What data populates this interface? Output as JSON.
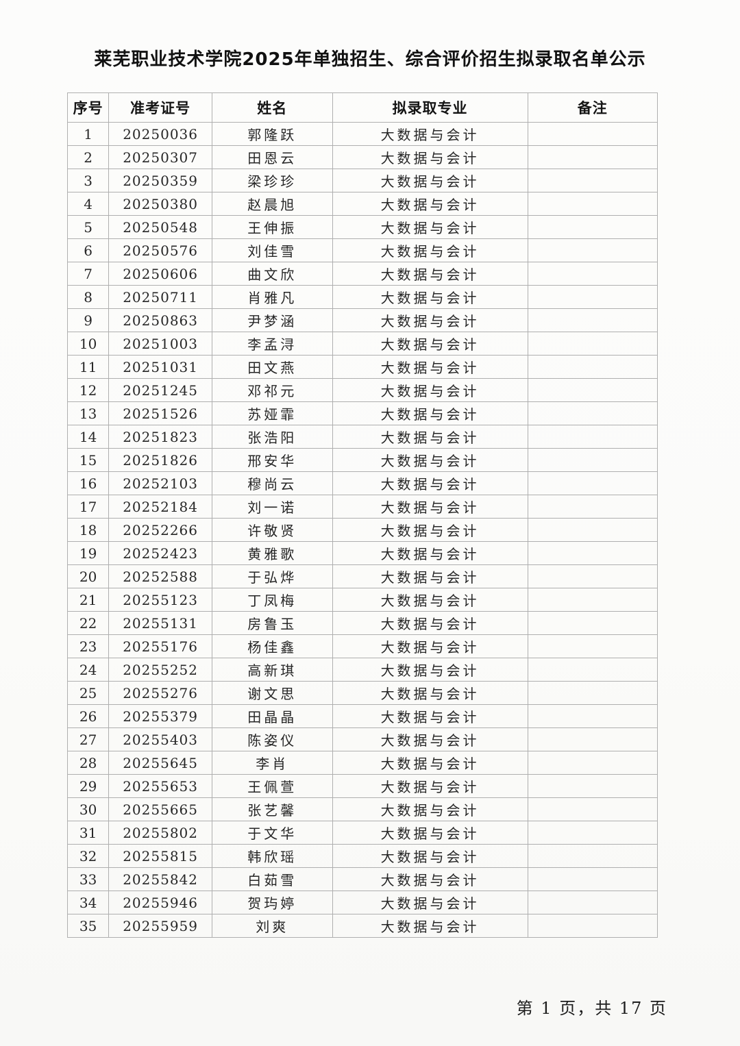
{
  "page": {
    "title": "莱芜职业技术学院2025年单独招生、综合评价招生拟录取名单公示",
    "footer": "第 1 页，共 17 页"
  },
  "table": {
    "headers": [
      "序号",
      "准考证号",
      "姓名",
      "拟录取专业",
      "备注"
    ],
    "rows": [
      {
        "no": "1",
        "exam_no": "20250036",
        "name": "郭隆跃",
        "major": "大数据与会计",
        "remark": ""
      },
      {
        "no": "2",
        "exam_no": "20250307",
        "name": "田恩云",
        "major": "大数据与会计",
        "remark": ""
      },
      {
        "no": "3",
        "exam_no": "20250359",
        "name": "梁珍珍",
        "major": "大数据与会计",
        "remark": ""
      },
      {
        "no": "4",
        "exam_no": "20250380",
        "name": "赵晨旭",
        "major": "大数据与会计",
        "remark": ""
      },
      {
        "no": "5",
        "exam_no": "20250548",
        "name": "王伸振",
        "major": "大数据与会计",
        "remark": ""
      },
      {
        "no": "6",
        "exam_no": "20250576",
        "name": "刘佳雪",
        "major": "大数据与会计",
        "remark": ""
      },
      {
        "no": "7",
        "exam_no": "20250606",
        "name": "曲文欣",
        "major": "大数据与会计",
        "remark": ""
      },
      {
        "no": "8",
        "exam_no": "20250711",
        "name": "肖雅凡",
        "major": "大数据与会计",
        "remark": ""
      },
      {
        "no": "9",
        "exam_no": "20250863",
        "name": "尹梦涵",
        "major": "大数据与会计",
        "remark": ""
      },
      {
        "no": "10",
        "exam_no": "20251003",
        "name": "李孟浔",
        "major": "大数据与会计",
        "remark": ""
      },
      {
        "no": "11",
        "exam_no": "20251031",
        "name": "田文燕",
        "major": "大数据与会计",
        "remark": ""
      },
      {
        "no": "12",
        "exam_no": "20251245",
        "name": "邓祁元",
        "major": "大数据与会计",
        "remark": ""
      },
      {
        "no": "13",
        "exam_no": "20251526",
        "name": "苏娅霏",
        "major": "大数据与会计",
        "remark": ""
      },
      {
        "no": "14",
        "exam_no": "20251823",
        "name": "张浩阳",
        "major": "大数据与会计",
        "remark": ""
      },
      {
        "no": "15",
        "exam_no": "20251826",
        "name": "邢安华",
        "major": "大数据与会计",
        "remark": ""
      },
      {
        "no": "16",
        "exam_no": "20252103",
        "name": "穆尚云",
        "major": "大数据与会计",
        "remark": ""
      },
      {
        "no": "17",
        "exam_no": "20252184",
        "name": "刘一诺",
        "major": "大数据与会计",
        "remark": ""
      },
      {
        "no": "18",
        "exam_no": "20252266",
        "name": "许敬贤",
        "major": "大数据与会计",
        "remark": ""
      },
      {
        "no": "19",
        "exam_no": "20252423",
        "name": "黄雅歌",
        "major": "大数据与会计",
        "remark": ""
      },
      {
        "no": "20",
        "exam_no": "20252588",
        "name": "于弘烨",
        "major": "大数据与会计",
        "remark": ""
      },
      {
        "no": "21",
        "exam_no": "20255123",
        "name": "丁凤梅",
        "major": "大数据与会计",
        "remark": ""
      },
      {
        "no": "22",
        "exam_no": "20255131",
        "name": "房鲁玉",
        "major": "大数据与会计",
        "remark": ""
      },
      {
        "no": "23",
        "exam_no": "20255176",
        "name": "杨佳鑫",
        "major": "大数据与会计",
        "remark": ""
      },
      {
        "no": "24",
        "exam_no": "20255252",
        "name": "高新琪",
        "major": "大数据与会计",
        "remark": ""
      },
      {
        "no": "25",
        "exam_no": "20255276",
        "name": "谢文思",
        "major": "大数据与会计",
        "remark": ""
      },
      {
        "no": "26",
        "exam_no": "20255379",
        "name": "田晶晶",
        "major": "大数据与会计",
        "remark": ""
      },
      {
        "no": "27",
        "exam_no": "20255403",
        "name": "陈姿仪",
        "major": "大数据与会计",
        "remark": ""
      },
      {
        "no": "28",
        "exam_no": "20255645",
        "name": "李肖",
        "major": "大数据与会计",
        "remark": ""
      },
      {
        "no": "29",
        "exam_no": "20255653",
        "name": "王佩萱",
        "major": "大数据与会计",
        "remark": ""
      },
      {
        "no": "30",
        "exam_no": "20255665",
        "name": "张艺馨",
        "major": "大数据与会计",
        "remark": ""
      },
      {
        "no": "31",
        "exam_no": "20255802",
        "name": "于文华",
        "major": "大数据与会计",
        "remark": ""
      },
      {
        "no": "32",
        "exam_no": "20255815",
        "name": "韩欣瑶",
        "major": "大数据与会计",
        "remark": ""
      },
      {
        "no": "33",
        "exam_no": "20255842",
        "name": "白茹雪",
        "major": "大数据与会计",
        "remark": ""
      },
      {
        "no": "34",
        "exam_no": "20255946",
        "name": "贺玙婷",
        "major": "大数据与会计",
        "remark": ""
      },
      {
        "no": "35",
        "exam_no": "20255959",
        "name": "刘爽",
        "major": "大数据与会计",
        "remark": ""
      }
    ]
  }
}
